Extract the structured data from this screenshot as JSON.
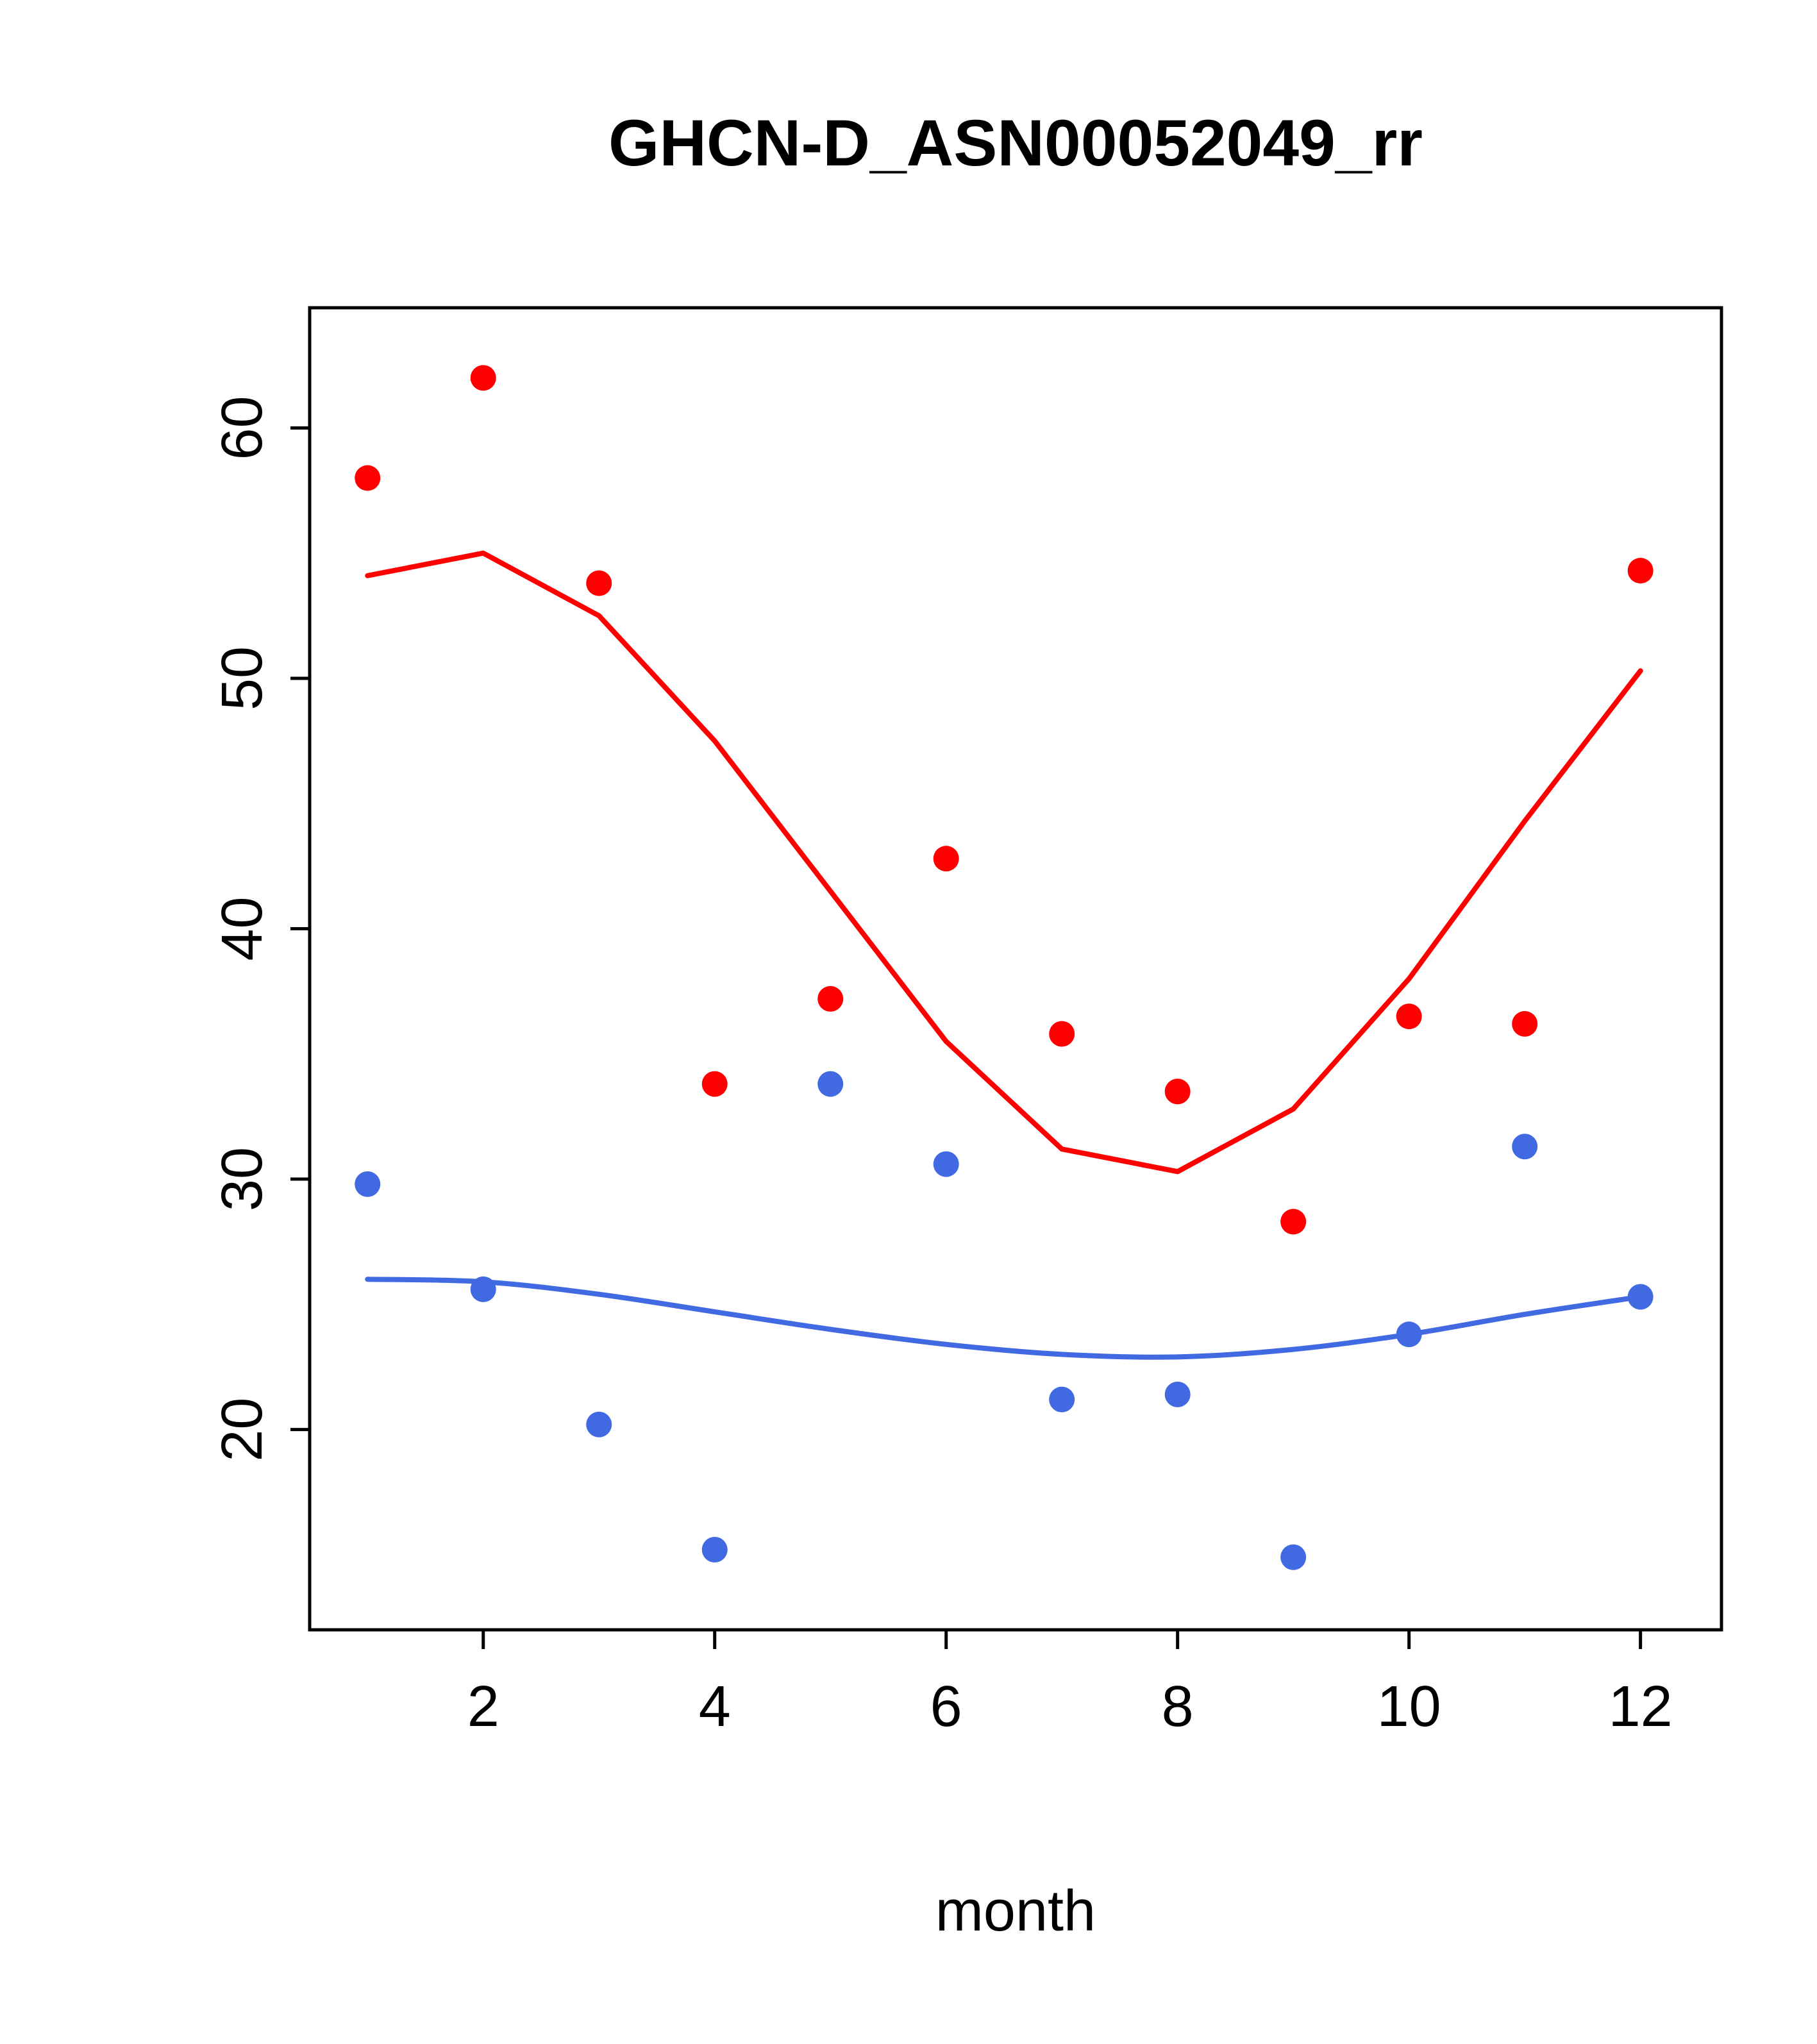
{
  "chart_data": {
    "type": "scatter",
    "title": "GHCN-D_ASN00052049_rr",
    "xlabel": "month",
    "ylabel": "",
    "x": [
      1,
      2,
      3,
      4,
      5,
      6,
      7,
      8,
      9,
      10,
      11,
      12
    ],
    "xticks": [
      2,
      4,
      6,
      8,
      10,
      12
    ],
    "yticks": [
      20,
      30,
      40,
      50,
      60
    ],
    "xlim": [
      0.5,
      12.7
    ],
    "ylim": [
      12.0,
      64.8
    ],
    "grid": false,
    "legend": "none",
    "series": [
      {
        "name": "red-scatter",
        "type": "points",
        "color": "#ff0000",
        "values": [
          58.0,
          62.0,
          53.8,
          33.8,
          37.2,
          42.8,
          35.8,
          33.5,
          28.3,
          36.5,
          36.2,
          54.3
        ]
      },
      {
        "name": "red-trend",
        "type": "line",
        "smooth": false,
        "color": "#ff0000",
        "values": [
          54.1,
          55.0,
          52.5,
          47.5,
          41.5,
          35.5,
          31.2,
          30.3,
          32.8,
          38.0,
          44.3,
          50.3
        ]
      },
      {
        "name": "blue-scatter",
        "type": "points",
        "color": "#4169e1",
        "values": [
          29.8,
          25.6,
          20.2,
          15.2,
          33.8,
          30.6,
          21.2,
          21.4,
          14.9,
          23.8,
          31.3,
          25.3
        ]
      },
      {
        "name": "blue-trend",
        "type": "line",
        "smooth": true,
        "color": "#4169e1",
        "values": [
          26.0,
          25.9,
          25.4,
          24.7,
          24.0,
          23.4,
          23.0,
          22.9,
          23.2,
          23.8,
          24.6,
          25.3
        ]
      }
    ]
  },
  "colors": {
    "red": "#ff0000",
    "blue": "#4169e1",
    "axis": "#000000",
    "background": "#ffffff"
  }
}
